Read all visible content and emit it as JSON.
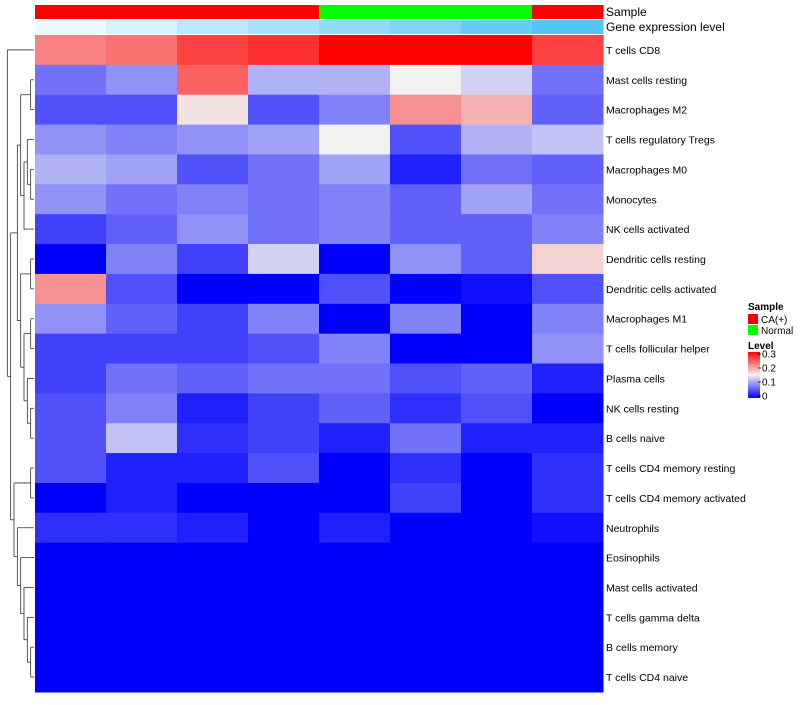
{
  "chart_data": {
    "type": "heatmap",
    "annotation_labels": {
      "sample": "Sample",
      "expression": "Gene expression level"
    },
    "sample_groups": [
      "CA(+)",
      "CA(+)",
      "CA(+)",
      "CA(+)",
      "Normal",
      "Normal",
      "Normal",
      "CA(+)"
    ],
    "gene_expression_levels": [
      0.1,
      0.22,
      0.38,
      0.5,
      0.62,
      0.72,
      0.85,
      0.97
    ],
    "rows": [
      "T cells CD8",
      "Mast cells resting",
      "Macrophages M2",
      "T cells regulatory  Tregs",
      "Macrophages M0",
      "Monocytes",
      "NK cells activated",
      "Dendritic cells resting",
      "Dendritic cells activated",
      "Macrophages M1",
      "T cells follicular helper",
      "Plasma cells",
      "NK cells resting",
      "B cells naive",
      "T cells CD4 memory resting",
      "T cells CD4 memory activated",
      "Neutrophils",
      "Eosinophils",
      "Mast cells activated",
      "T cells gamma delta",
      "B cells memory",
      "T cells CD4 naive"
    ],
    "values": [
      [
        0.22,
        0.23,
        0.26,
        0.27,
        0.3,
        0.3,
        0.3,
        0.26
      ],
      [
        0.07,
        0.09,
        0.24,
        0.11,
        0.11,
        0.15,
        0.13,
        0.07
      ],
      [
        0.05,
        0.05,
        0.16,
        0.05,
        0.08,
        0.21,
        0.19,
        0.06
      ],
      [
        0.09,
        0.08,
        0.09,
        0.1,
        0.15,
        0.05,
        0.11,
        0.12
      ],
      [
        0.11,
        0.1,
        0.05,
        0.07,
        0.1,
        0.02,
        0.07,
        0.06
      ],
      [
        0.09,
        0.07,
        0.08,
        0.07,
        0.08,
        0.06,
        0.1,
        0.07
      ],
      [
        0.04,
        0.06,
        0.09,
        0.07,
        0.08,
        0.06,
        0.06,
        0.08
      ],
      [
        0.0,
        0.08,
        0.04,
        0.13,
        0.0,
        0.09,
        0.06,
        0.17
      ],
      [
        0.21,
        0.05,
        0.0,
        0.0,
        0.05,
        0.0,
        0.01,
        0.05
      ],
      [
        0.09,
        0.06,
        0.04,
        0.08,
        0.0,
        0.08,
        0.0,
        0.08
      ],
      [
        0.04,
        0.04,
        0.04,
        0.05,
        0.08,
        0.0,
        0.0,
        0.09
      ],
      [
        0.04,
        0.07,
        0.06,
        0.07,
        0.07,
        0.05,
        0.06,
        0.02
      ],
      [
        0.05,
        0.08,
        0.02,
        0.04,
        0.06,
        0.03,
        0.05,
        0.0
      ],
      [
        0.05,
        0.12,
        0.03,
        0.04,
        0.02,
        0.07,
        0.02,
        0.02
      ],
      [
        0.05,
        0.02,
        0.02,
        0.05,
        0.0,
        0.03,
        0.0,
        0.03
      ],
      [
        0.0,
        0.02,
        0.0,
        0.0,
        0.0,
        0.04,
        0.0,
        0.03
      ],
      [
        0.03,
        0.03,
        0.02,
        0.0,
        0.02,
        0.0,
        0.0,
        0.01
      ],
      [
        0.0,
        0.0,
        0.0,
        0.0,
        0.0,
        0.0,
        0.0,
        0.0
      ],
      [
        0.0,
        0.0,
        0.0,
        0.0,
        0.0,
        0.0,
        0.0,
        0.0
      ],
      [
        0.0,
        0.0,
        0.0,
        0.0,
        0.0,
        0.0,
        0.0,
        0.0
      ],
      [
        0.0,
        0.0,
        0.0,
        0.0,
        0.0,
        0.0,
        0.0,
        0.0
      ],
      [
        0.0,
        0.0,
        0.0,
        0.0,
        0.0,
        0.0,
        0.0,
        0.0
      ]
    ],
    "colorscale": {
      "low": "#0000ff",
      "mid": "#f2f2f2",
      "high": "#ff0000",
      "min": 0,
      "mid_value": 0.15,
      "max": 0.3
    },
    "legend": {
      "sample_title": "Sample",
      "sample_items": [
        {
          "label": "CA(+)",
          "color": "#ff0000"
        },
        {
          "label": "Normal",
          "color": "#00ff00"
        }
      ],
      "level_title": "Level",
      "level_ticks": [
        "0.3",
        "0.2",
        "0.1",
        "0"
      ],
      "position": "right"
    },
    "group_colors": {
      "CA(+)": "#ff0000",
      "Normal": "#00ff00"
    },
    "expression_colors": {
      "low": "#ffffff",
      "high": "#4fc3f7"
    }
  }
}
